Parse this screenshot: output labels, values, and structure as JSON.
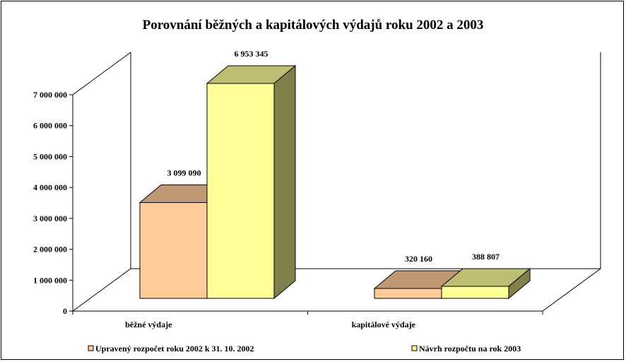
{
  "chart_data": {
    "type": "bar",
    "title": "Porovnání běžných a kapitálových výdajů roku 2002 a 2003",
    "categories": [
      "běžné výdaje",
      "kapitálové výdaje"
    ],
    "series": [
      {
        "name": "Upravený rozpočet roku 2002 k 31. 10. 2002",
        "values": [
          3099090,
          320160
        ],
        "labels": [
          "3 099 090",
          "320 160"
        ],
        "color": "#FFCC99"
      },
      {
        "name": "Návrh rozpočtu na rok 2003",
        "values": [
          6953345,
          388807
        ],
        "labels": [
          "6 953 345",
          "388 807"
        ],
        "color": "#FFFF99"
      }
    ],
    "y_ticks": [
      "0",
      "1 000 000",
      "2 000 000",
      "3 000 000",
      "4 000 000",
      "5 000 000",
      "6 000 000",
      "7 000 000"
    ],
    "ylim": [
      0,
      7000000
    ],
    "grid": false,
    "legend": "bottom"
  }
}
